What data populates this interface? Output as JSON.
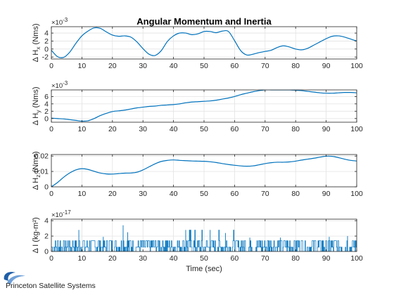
{
  "figure": {
    "title": "Angular Momentum and Inertia",
    "brand": "Princeton Satellite Systems"
  },
  "colors": {
    "line": "#0072BD",
    "grid": "#e3e3e3",
    "axis": "#262626",
    "logo": "#1f5fa8"
  },
  "chart_data": [
    {
      "type": "line",
      "title": "Angular Momentum and Inertia",
      "ylabel_prefix": "Δ H",
      "ylabel_sub": "x",
      "ylabel_suffix": " (Nms)",
      "exponent": {
        "base": "×10",
        "power": "-3"
      },
      "xlabel": "",
      "xlim": [
        0,
        100
      ],
      "ylim": [
        -2.5,
        5.6
      ],
      "xticks": [
        0,
        10,
        20,
        30,
        40,
        50,
        60,
        70,
        80,
        90,
        100
      ],
      "yticks": [
        -2,
        0,
        2,
        4
      ],
      "grid": true,
      "series": [
        {
          "x": [
            0,
            2,
            4,
            6,
            8,
            10,
            12,
            14,
            16,
            18,
            20,
            22,
            24,
            26,
            28,
            30,
            32,
            34,
            36,
            38,
            40,
            42,
            44,
            46,
            48,
            50,
            52,
            54,
            56,
            58,
            60,
            62,
            64,
            66,
            68,
            70,
            72,
            74,
            76,
            78,
            80,
            82,
            84,
            86,
            88,
            90,
            92,
            94,
            96,
            98,
            100
          ],
          "y": [
            -0.3,
            -1.9,
            -2.1,
            -0.8,
            1.4,
            3.3,
            4.5,
            5.3,
            5.2,
            4.3,
            3.5,
            3.2,
            3.3,
            3.0,
            1.8,
            0.1,
            -1.3,
            -1.6,
            -0.4,
            1.9,
            3.3,
            4.0,
            4.0,
            3.6,
            3.8,
            4.4,
            4.4,
            4.1,
            4.5,
            4.4,
            2.1,
            -0.4,
            -1.5,
            -1.3,
            -0.9,
            -0.6,
            -0.3,
            0.4,
            0.8,
            0.5,
            0.0,
            -0.2,
            0.2,
            1.0,
            1.8,
            2.6,
            3.2,
            3.3,
            3.0,
            2.5,
            2.0
          ]
        }
      ]
    },
    {
      "type": "line",
      "ylabel_prefix": "Δ H",
      "ylabel_sub": "y",
      "ylabel_suffix": " (Nms)",
      "exponent": {
        "base": "×10",
        "power": "-3"
      },
      "xlabel": "",
      "xlim": [
        0,
        100
      ],
      "ylim": [
        -1.0,
        7.8
      ],
      "xticks": [
        0,
        10,
        20,
        30,
        40,
        50,
        60,
        70,
        80,
        90,
        100
      ],
      "yticks": [
        0,
        2,
        4,
        6
      ],
      "grid": true,
      "series": [
        {
          "x": [
            0,
            2,
            4,
            6,
            8,
            10,
            12,
            14,
            16,
            18,
            20,
            22,
            24,
            26,
            28,
            30,
            32,
            34,
            36,
            38,
            40,
            42,
            44,
            46,
            48,
            50,
            52,
            54,
            56,
            58,
            60,
            62,
            64,
            66,
            68,
            70,
            72,
            74,
            76,
            78,
            80,
            82,
            84,
            86,
            88,
            90,
            92,
            94,
            96,
            98,
            100
          ],
          "y": [
            0.1,
            0.0,
            -0.1,
            -0.3,
            -0.5,
            -0.7,
            -0.6,
            0.0,
            0.8,
            1.4,
            1.9,
            2.1,
            2.3,
            2.6,
            2.9,
            3.1,
            3.3,
            3.4,
            3.6,
            3.7,
            3.8,
            4.0,
            4.3,
            4.5,
            4.6,
            4.7,
            4.8,
            5.0,
            5.3,
            5.6,
            6.0,
            6.5,
            6.9,
            7.3,
            7.6,
            7.8,
            7.8,
            7.8,
            7.8,
            7.8,
            7.7,
            7.6,
            7.4,
            7.2,
            7.0,
            6.9,
            6.9,
            7.0,
            7.1,
            7.1,
            7.0
          ]
        }
      ]
    },
    {
      "type": "line",
      "ylabel_prefix": "Δ H",
      "ylabel_sub": "z",
      "ylabel_suffix": " (Nms)",
      "xlabel": "",
      "xlim": [
        0,
        100
      ],
      "ylim": [
        0,
        0.021
      ],
      "xticks": [
        0,
        10,
        20,
        30,
        40,
        50,
        60,
        70,
        80,
        90,
        100
      ],
      "yticks": [
        0,
        0.01,
        0.02
      ],
      "ytick_labels": [
        "0",
        "0.01",
        "0.02"
      ],
      "grid": true,
      "series": [
        {
          "x": [
            0,
            2,
            4,
            6,
            8,
            10,
            12,
            14,
            16,
            18,
            20,
            22,
            24,
            26,
            28,
            30,
            32,
            34,
            36,
            38,
            40,
            42,
            44,
            46,
            48,
            50,
            52,
            54,
            56,
            58,
            60,
            62,
            64,
            66,
            68,
            70,
            72,
            74,
            76,
            78,
            80,
            82,
            84,
            86,
            88,
            90,
            92,
            94,
            96,
            98,
            100
          ],
          "y": [
            0.0,
            0.0028,
            0.0062,
            0.009,
            0.011,
            0.0118,
            0.0113,
            0.0101,
            0.009,
            0.0084,
            0.0083,
            0.0086,
            0.0089,
            0.009,
            0.0095,
            0.011,
            0.013,
            0.015,
            0.0165,
            0.0172,
            0.0175,
            0.0172,
            0.017,
            0.0168,
            0.0167,
            0.0166,
            0.0163,
            0.0158,
            0.0151,
            0.0145,
            0.014,
            0.0136,
            0.0134,
            0.0136,
            0.0143,
            0.0151,
            0.0157,
            0.016,
            0.016,
            0.0162,
            0.0167,
            0.0174,
            0.018,
            0.0186,
            0.0193,
            0.0199,
            0.0198,
            0.019,
            0.018,
            0.0172,
            0.0168
          ]
        }
      ]
    },
    {
      "type": "line",
      "ylabel": "Δ I (kg-m²)",
      "exponent": {
        "base": "×10",
        "power": "-17"
      },
      "xlabel": "Time (sec)",
      "xlim": [
        0,
        100
      ],
      "ylim": [
        0,
        4.2
      ],
      "xticks": [
        0,
        10,
        20,
        30,
        40,
        50,
        60,
        70,
        80,
        90,
        100
      ],
      "yticks": [
        0,
        2,
        4
      ],
      "grid": true,
      "noise": {
        "note_levels": [
          0,
          0.56,
          1.39,
          2.78,
          3.4
        ],
        "typical_range": [
          0,
          1.5
        ],
        "spikes": [
          {
            "x": 9,
            "y": 2.8
          },
          {
            "x": 17,
            "y": 1.9
          },
          {
            "x": 23.5,
            "y": 3.4
          },
          {
            "x": 25,
            "y": 2.5
          },
          {
            "x": 44,
            "y": 2.8
          },
          {
            "x": 52,
            "y": 2.8
          },
          {
            "x": 57,
            "y": 2.4
          },
          {
            "x": 65,
            "y": 1.8
          },
          {
            "x": 75,
            "y": 1.8
          },
          {
            "x": 91,
            "y": 1.9
          },
          {
            "x": 97,
            "y": 2.0
          }
        ],
        "dense_band": [
          43,
          60
        ]
      }
    }
  ]
}
